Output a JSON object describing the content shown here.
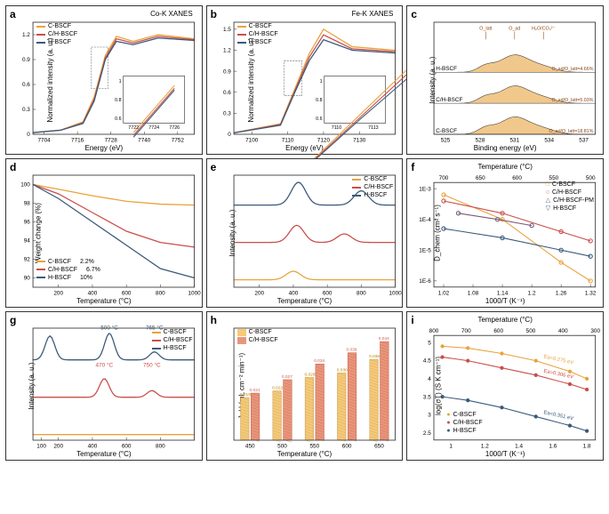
{
  "panels": {
    "a": {
      "label": "a",
      "title": "Co-K XANES",
      "ylabel": "Normalized intensity (a. u.)",
      "xlabel": "Energy (eV)",
      "legend": [
        "C-BSCF",
        "C/H-BSCF",
        "H-BSCF"
      ],
      "legend_colors": [
        "#e8a33d",
        "#c94f4a",
        "#3a5a7a"
      ],
      "xticks": [
        7704,
        7716,
        7728,
        7740,
        7752
      ],
      "yticks": [
        0.0,
        0.3,
        0.6,
        0.9,
        1.2
      ],
      "xlim": [
        7700,
        7758
      ],
      "ylim": [
        0,
        1.35
      ],
      "inset_xticks": [
        7722,
        7724,
        7726
      ],
      "inset_yticks": [
        0.6,
        0.8,
        1.0
      ],
      "series": {
        "c_bscf": {
          "color": "#e8a33d",
          "x": [
            7700,
            7710,
            7718,
            7722,
            7726,
            7730,
            7736,
            7745,
            7758
          ],
          "y": [
            0.02,
            0.05,
            0.15,
            0.45,
            0.95,
            1.18,
            1.12,
            1.2,
            1.15
          ]
        },
        "ch_bscf": {
          "color": "#c94f4a",
          "x": [
            7700,
            7710,
            7718,
            7722,
            7726,
            7730,
            7736,
            7745,
            7758
          ],
          "y": [
            0.02,
            0.05,
            0.14,
            0.42,
            0.92,
            1.15,
            1.1,
            1.18,
            1.14
          ]
        },
        "h_bscf": {
          "color": "#3a5a7a",
          "x": [
            7700,
            7710,
            7718,
            7722,
            7726,
            7730,
            7736,
            7745,
            7758
          ],
          "y": [
            0.02,
            0.05,
            0.13,
            0.4,
            0.9,
            1.12,
            1.08,
            1.16,
            1.13
          ]
        }
      }
    },
    "b": {
      "label": "b",
      "title": "Fe-K XANES",
      "ylabel": "Normalized intensity (a. u.)",
      "xlabel": "Energy (eV)",
      "legend": [
        "C-BSCF",
        "C/H-BSCF",
        "H-BSCF"
      ],
      "legend_colors": [
        "#e8a33d",
        "#c94f4a",
        "#3a5a7a"
      ],
      "xticks": [
        7100,
        7110,
        7120,
        7130
      ],
      "yticks": [
        0.0,
        0.3,
        0.6,
        0.9,
        1.2,
        1.5
      ],
      "xlim": [
        7095,
        7140
      ],
      "ylim": [
        0,
        1.6
      ],
      "inset_xticks": [
        7110,
        7113
      ],
      "inset_yticks": [
        0.6,
        0.8,
        1.0
      ],
      "series": {
        "c_bscf": {
          "color": "#e8a33d",
          "x": [
            7095,
            7108,
            7112,
            7116,
            7120,
            7128,
            7140
          ],
          "y": [
            0.02,
            0.15,
            0.65,
            1.15,
            1.5,
            1.25,
            1.2
          ]
        },
        "ch_bscf": {
          "color": "#c94f4a",
          "x": [
            7095,
            7108,
            7112,
            7116,
            7120,
            7128,
            7140
          ],
          "y": [
            0.02,
            0.14,
            0.62,
            1.1,
            1.42,
            1.22,
            1.18
          ]
        },
        "h_bscf": {
          "color": "#3a5a7a",
          "x": [
            7095,
            7108,
            7112,
            7116,
            7120,
            7128,
            7140
          ],
          "y": [
            0.02,
            0.13,
            0.6,
            1.05,
            1.35,
            1.2,
            1.16
          ]
        }
      }
    },
    "c": {
      "label": "c",
      "ylabel": "Intensity (a. u.)",
      "xlabel": "Binding energy (eV)",
      "xticks": [
        525,
        528,
        531,
        534,
        537
      ],
      "xlim": [
        524,
        538
      ],
      "peak_labels": [
        "O_latt",
        "O_ad",
        "H₂O/CO₃²⁻"
      ],
      "curves": [
        {
          "name": "H-BSCF",
          "ratio": "O_ad/O_latt=4.66%"
        },
        {
          "name": "C/H-BSCF",
          "ratio": "O_ad/O_latt=5.03%"
        },
        {
          "name": "C-BSCF",
          "ratio": "O_ad/O_latt=18.81%"
        }
      ],
      "fill_color": "#e8a33d"
    },
    "d": {
      "label": "d",
      "ylabel": "Weight change (%)",
      "xlabel": "Temperature (°C)",
      "xticks": [
        200,
        400,
        600,
        800,
        1000
      ],
      "yticks": [
        90,
        92,
        94,
        96,
        98,
        100
      ],
      "xlim": [
        50,
        1000
      ],
      "ylim": [
        89,
        101
      ],
      "legend_items": [
        {
          "label": "C-BSCF",
          "pct": "2.2%",
          "color": "#e8a33d"
        },
        {
          "label": "C/H-BSCF",
          "pct": "6.7%",
          "color": "#c94f4a"
        },
        {
          "label": "H-BSCF",
          "pct": "10%",
          "color": "#3a5a7a"
        }
      ],
      "series": {
        "c_bscf": {
          "color": "#e8a33d",
          "x": [
            50,
            200,
            400,
            600,
            800,
            1000
          ],
          "y": [
            100,
            99.5,
            98.8,
            98.2,
            97.9,
            97.8
          ]
        },
        "ch_bscf": {
          "color": "#c94f4a",
          "x": [
            50,
            200,
            400,
            600,
            800,
            1000
          ],
          "y": [
            100,
            99,
            97,
            95,
            93.8,
            93.3
          ]
        },
        "h_bscf": {
          "color": "#3a5a7a",
          "x": [
            50,
            200,
            400,
            600,
            800,
            1000
          ],
          "y": [
            100,
            98.5,
            96,
            93.5,
            91,
            90
          ]
        }
      }
    },
    "e": {
      "label": "e",
      "ylabel": "Intensity (a. u.)",
      "xlabel": "Temperature (°C)",
      "legend": [
        "C-BSCF",
        "C/H-BSCF",
        "H-BSCF"
      ],
      "legend_colors": [
        "#e8a33d",
        "#c94f4a",
        "#3a5a7a"
      ],
      "xticks": [
        200,
        400,
        600,
        800,
        1000
      ],
      "xlim": [
        50,
        1000
      ],
      "series": {
        "h_bscf": {
          "color": "#3a5a7a",
          "offset": 2,
          "peaks": [
            {
              "x": 430,
              "h": 0.8
            },
            {
              "x": 800,
              "h": 0.5
            }
          ]
        },
        "ch_bscf": {
          "color": "#c94f4a",
          "offset": 1,
          "peaks": [
            {
              "x": 420,
              "h": 0.6
            },
            {
              "x": 700,
              "h": 0.3
            }
          ]
        },
        "c_bscf": {
          "color": "#e8a33d",
          "offset": 0,
          "peaks": [
            {
              "x": 400,
              "h": 0.3
            }
          ]
        }
      }
    },
    "f": {
      "label": "f",
      "ylabel": "D_chem (cm² s⁻¹)",
      "xlabel": "1000/T (K⁻¹)",
      "xlabel_top": "Temperature (°C)",
      "xticks": [
        1.02,
        1.08,
        1.14,
        1.2,
        1.26,
        1.32
      ],
      "xticks_top": [
        700,
        650,
        600,
        550,
        500
      ],
      "yticks": [
        "1E-3",
        "1E-4",
        "1E-5",
        "1E-6"
      ],
      "xlim": [
        1.0,
        1.33
      ],
      "ylim": [
        -6.2,
        -2.8
      ],
      "legend": [
        "C-BSCF",
        "C/H-BSCF",
        "C/H-BSCF-PM",
        "H-BSCF"
      ],
      "legend_colors": [
        "#e8a33d",
        "#c94f4a",
        "#7a5a7a",
        "#3a5a7a"
      ],
      "legend_markers": [
        "square",
        "circle",
        "triangle",
        "inverted-triangle"
      ],
      "series": {
        "c_bscf": {
          "color": "#e8a33d",
          "x": [
            1.02,
            1.14,
            1.26,
            1.32
          ],
          "y": [
            -3.2,
            -4.0,
            -5.4,
            -6.0
          ]
        },
        "ch_bscf": {
          "color": "#c94f4a",
          "x": [
            1.02,
            1.14,
            1.26,
            1.32
          ],
          "y": [
            -3.4,
            -3.8,
            -4.4,
            -4.7
          ]
        },
        "ch_bscf_pm": {
          "color": "#7a5a7a",
          "x": [
            1.05,
            1.13,
            1.2
          ],
          "y": [
            -3.8,
            -4.0,
            -4.2
          ]
        },
        "h_bscf": {
          "color": "#3a5a7a",
          "x": [
            1.02,
            1.14,
            1.26,
            1.32
          ],
          "y": [
            -4.3,
            -4.6,
            -5.0,
            -5.2
          ]
        }
      }
    },
    "g": {
      "label": "g",
      "ylabel": "Intensity (a. u.)",
      "xlabel": "Temperature (°C)",
      "legend": [
        "C-BSCF",
        "C/H-BSCF",
        "H-BSCF"
      ],
      "legend_colors": [
        "#e8a33d",
        "#c94f4a",
        "#3a5a7a"
      ],
      "xticks": [
        200,
        400,
        600,
        800,
        100
      ],
      "xlim": [
        50,
        1000
      ],
      "annotations": [
        {
          "text": "500 °C",
          "x": 500,
          "series": "h_bscf"
        },
        {
          "text": "765 °C",
          "x": 765,
          "series": "h_bscf"
        },
        {
          "text": "470 °C",
          "x": 470,
          "series": "ch_bscf"
        },
        {
          "text": "750 °C",
          "x": 750,
          "series": "ch_bscf"
        }
      ],
      "series": {
        "h_bscf": {
          "color": "#3a5a7a",
          "offset": 2,
          "peaks": [
            {
              "x": 150,
              "h": 0.9
            },
            {
              "x": 500,
              "h": 1.0
            },
            {
              "x": 765,
              "h": 0.3
            }
          ]
        },
        "ch_bscf": {
          "color": "#c94f4a",
          "offset": 1,
          "peaks": [
            {
              "x": 470,
              "h": 0.7
            },
            {
              "x": 750,
              "h": 0.25
            }
          ]
        },
        "c_bscf": {
          "color": "#e8a33d",
          "offset": 0,
          "peaks": []
        }
      }
    },
    "h": {
      "label": "h",
      "ylabel": "J_H (mL cm⁻² min⁻¹)",
      "xlabel": "Temperature (°C)",
      "legend": [
        "C-BSCF",
        "C/H-BSCF"
      ],
      "legend_colors": [
        "#f5c97a",
        "#e8967a"
      ],
      "xticks": [
        450,
        500,
        550,
        600,
        650
      ],
      "xlim": [
        425,
        675
      ],
      "ylim": [
        0,
        0.05
      ],
      "bars": [
        {
          "T": 450,
          "c_bscf": 0.019,
          "ch_bscf": 0.021,
          "label_c": "0.019",
          "label_ch": "0.021"
        },
        {
          "T": 500,
          "c_bscf": 0.022,
          "ch_bscf": 0.027,
          "label_c": "0.022",
          "label_ch": "0.027"
        },
        {
          "T": 550,
          "c_bscf": 0.028,
          "ch_bscf": 0.034,
          "label_c": "0.028",
          "label_ch": "0.034"
        },
        {
          "T": 600,
          "c_bscf": 0.03,
          "ch_bscf": 0.039,
          "label_c": "0.030",
          "label_ch": "0.039"
        },
        {
          "T": 650,
          "c_bscf": 0.036,
          "ch_bscf": 0.044,
          "label_c": "0.036",
          "label_ch": "0.044"
        }
      ]
    },
    "i": {
      "label": "i",
      "ylabel": "log(σT) (S K cm⁻¹)",
      "xlabel": "1000/T (K⁻¹)",
      "xlabel_top": "Temperature (°C)",
      "xticks": [
        1.0,
        1.2,
        1.4,
        1.6,
        1.8
      ],
      "xticks_top": [
        800,
        700,
        600,
        500,
        400,
        300
      ],
      "yticks": [
        2.5,
        3.0,
        3.5,
        4.0,
        4.5,
        5.0
      ],
      "xlim": [
        0.9,
        1.85
      ],
      "ylim": [
        2.3,
        5.2
      ],
      "legend": [
        "C-BSCF",
        "C/H-BSCF",
        "H-BSCF"
      ],
      "legend_colors": [
        "#e8a33d",
        "#c94f4a",
        "#3a5a7a"
      ],
      "annotations": [
        "Ea=0.275 eV",
        "Ea=0.306 eV",
        "Ea=0.351 eV"
      ],
      "series": {
        "c_bscf": {
          "color": "#e8a33d",
          "x": [
            0.95,
            1.1,
            1.3,
            1.5,
            1.7,
            1.8
          ],
          "y": [
            4.9,
            4.85,
            4.7,
            4.5,
            4.2,
            4.0
          ]
        },
        "ch_bscf": {
          "color": "#c94f4a",
          "x": [
            0.95,
            1.1,
            1.3,
            1.5,
            1.7,
            1.8
          ],
          "y": [
            4.6,
            4.5,
            4.3,
            4.1,
            3.85,
            3.7
          ]
        },
        "h_bscf": {
          "color": "#3a5a7a",
          "x": [
            0.95,
            1.1,
            1.3,
            1.5,
            1.7,
            1.8
          ],
          "y": [
            3.5,
            3.4,
            3.2,
            2.95,
            2.7,
            2.55
          ]
        }
      }
    }
  }
}
